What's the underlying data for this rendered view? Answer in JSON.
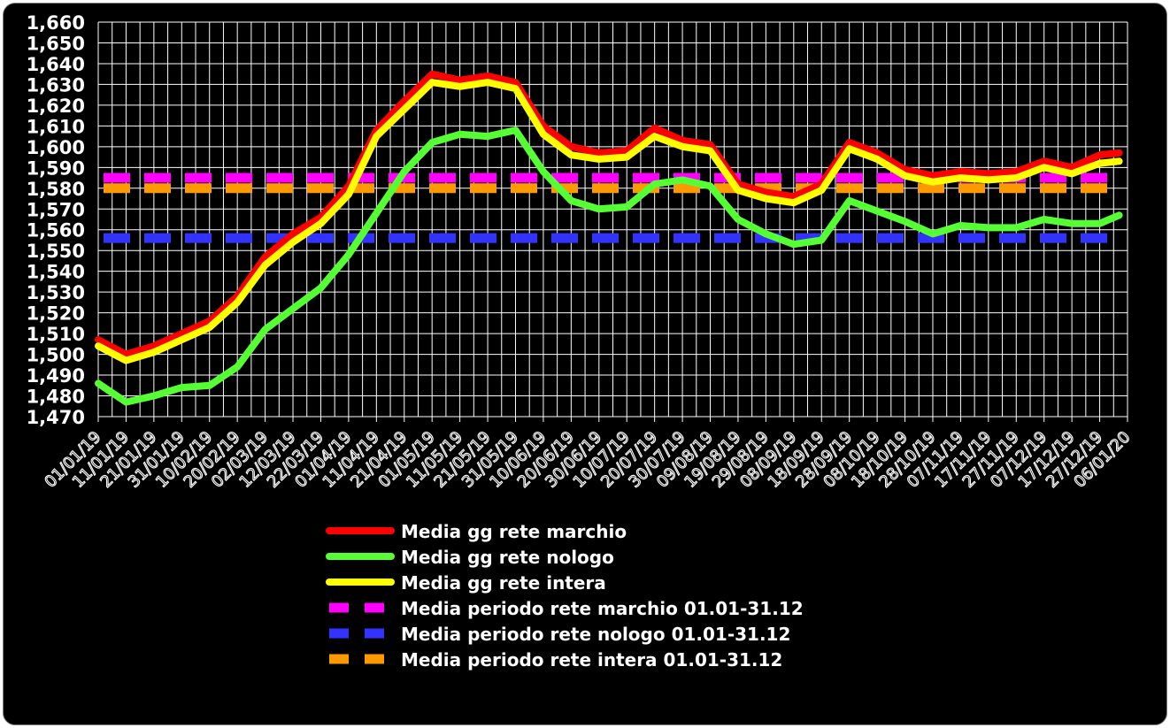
{
  "chart_data": {
    "type": "line",
    "title": "",
    "xlabel": "",
    "ylabel": "",
    "ylim": [
      1470,
      1660
    ],
    "y_ticks": [
      "1,470",
      "1,480",
      "1,490",
      "1,500",
      "1,510",
      "1,520",
      "1,530",
      "1,540",
      "1,550",
      "1,560",
      "1,570",
      "1,580",
      "1,590",
      "1,600",
      "1,610",
      "1,620",
      "1,630",
      "1,640",
      "1,650",
      "1,660"
    ],
    "x_start": "2019-01-01",
    "x_end": "2020-01-06",
    "x_tick_labels": [
      "01/01/19",
      "11/01/19",
      "21/01/19",
      "31/01/19",
      "10/02/19",
      "20/02/19",
      "02/03/19",
      "12/03/19",
      "22/03/19",
      "01/04/19",
      "11/04/19",
      "21/04/19",
      "01/05/19",
      "11/05/19",
      "21/05/19",
      "31/05/19",
      "10/06/19",
      "20/06/19",
      "30/06/19",
      "10/07/19",
      "20/07/19",
      "30/07/19",
      "09/08/19",
      "19/08/19",
      "29/08/19",
      "08/09/19",
      "18/09/19",
      "28/09/19",
      "08/10/19",
      "18/10/19",
      "28/10/19",
      "07/11/19",
      "17/11/19",
      "27/11/19",
      "07/12/19",
      "17/12/19",
      "27/12/19",
      "06/01/20"
    ],
    "grid": true,
    "legend_position": "bottom",
    "series": [
      {
        "name": "Media gg rete marchio",
        "color": "#ff0000",
        "style": "solid",
        "points": [
          [
            "01/01/19",
            1507
          ],
          [
            "11/01/19",
            1500
          ],
          [
            "21/01/19",
            1504
          ],
          [
            "31/01/19",
            1510
          ],
          [
            "10/02/19",
            1516
          ],
          [
            "20/02/19",
            1528
          ],
          [
            "02/03/19",
            1547
          ],
          [
            "12/03/19",
            1558
          ],
          [
            "22/03/19",
            1566
          ],
          [
            "01/04/19",
            1581
          ],
          [
            "11/04/19",
            1608
          ],
          [
            "21/04/19",
            1622
          ],
          [
            "01/05/19",
            1635
          ],
          [
            "11/05/19",
            1632
          ],
          [
            "21/05/19",
            1634
          ],
          [
            "31/05/19",
            1631
          ],
          [
            "10/06/19",
            1610
          ],
          [
            "20/06/19",
            1600
          ],
          [
            "30/06/19",
            1597
          ],
          [
            "10/07/19",
            1598
          ],
          [
            "20/07/19",
            1609
          ],
          [
            "30/07/19",
            1603
          ],
          [
            "09/08/19",
            1601
          ],
          [
            "19/08/19",
            1582
          ],
          [
            "29/08/19",
            1578
          ],
          [
            "08/09/19",
            1576
          ],
          [
            "18/09/19",
            1582
          ],
          [
            "28/09/19",
            1602
          ],
          [
            "08/10/19",
            1597
          ],
          [
            "18/10/19",
            1589
          ],
          [
            "28/10/19",
            1586
          ],
          [
            "07/11/19",
            1588
          ],
          [
            "17/11/19",
            1587
          ],
          [
            "27/11/19",
            1588
          ],
          [
            "07/12/19",
            1593
          ],
          [
            "17/12/19",
            1590
          ],
          [
            "27/12/19",
            1596
          ],
          [
            "03/01/20",
            1597
          ]
        ]
      },
      {
        "name": "Media gg rete nologo",
        "color": "#55ff33",
        "style": "solid",
        "points": [
          [
            "01/01/19",
            1486
          ],
          [
            "11/01/19",
            1477
          ],
          [
            "21/01/19",
            1480
          ],
          [
            "31/01/19",
            1484
          ],
          [
            "10/02/19",
            1485
          ],
          [
            "20/02/19",
            1494
          ],
          [
            "02/03/19",
            1512
          ],
          [
            "12/03/19",
            1522
          ],
          [
            "22/03/19",
            1532
          ],
          [
            "01/04/19",
            1548
          ],
          [
            "11/04/19",
            1568
          ],
          [
            "21/04/19",
            1588
          ],
          [
            "01/05/19",
            1602
          ],
          [
            "11/05/19",
            1606
          ],
          [
            "21/05/19",
            1605
          ],
          [
            "31/05/19",
            1608
          ],
          [
            "10/06/19",
            1588
          ],
          [
            "20/06/19",
            1574
          ],
          [
            "30/06/19",
            1570
          ],
          [
            "10/07/19",
            1571
          ],
          [
            "20/07/19",
            1582
          ],
          [
            "30/07/19",
            1584
          ],
          [
            "09/08/19",
            1581
          ],
          [
            "19/08/19",
            1565
          ],
          [
            "29/08/19",
            1558
          ],
          [
            "08/09/19",
            1553
          ],
          [
            "18/09/19",
            1555
          ],
          [
            "28/09/19",
            1574
          ],
          [
            "08/10/19",
            1569
          ],
          [
            "18/10/19",
            1564
          ],
          [
            "28/10/19",
            1558
          ],
          [
            "07/11/19",
            1562
          ],
          [
            "17/11/19",
            1561
          ],
          [
            "27/11/19",
            1561
          ],
          [
            "07/12/19",
            1565
          ],
          [
            "17/12/19",
            1563
          ],
          [
            "27/12/19",
            1563
          ],
          [
            "03/01/20",
            1567
          ]
        ]
      },
      {
        "name": "Media gg rete intera",
        "color": "#ffff00",
        "style": "solid",
        "points": [
          [
            "01/01/19",
            1504
          ],
          [
            "11/01/19",
            1497
          ],
          [
            "21/01/19",
            1501
          ],
          [
            "31/01/19",
            1507
          ],
          [
            "10/02/19",
            1513
          ],
          [
            "20/02/19",
            1525
          ],
          [
            "02/03/19",
            1543
          ],
          [
            "12/03/19",
            1554
          ],
          [
            "22/03/19",
            1563
          ],
          [
            "01/04/19",
            1577
          ],
          [
            "11/04/19",
            1605
          ],
          [
            "21/04/19",
            1618
          ],
          [
            "01/05/19",
            1631
          ],
          [
            "11/05/19",
            1629
          ],
          [
            "21/05/19",
            1631
          ],
          [
            "31/05/19",
            1628
          ],
          [
            "10/06/19",
            1606
          ],
          [
            "20/06/19",
            1596
          ],
          [
            "30/06/19",
            1594
          ],
          [
            "10/07/19",
            1595
          ],
          [
            "20/07/19",
            1605
          ],
          [
            "30/07/19",
            1600
          ],
          [
            "09/08/19",
            1598
          ],
          [
            "19/08/19",
            1579
          ],
          [
            "29/08/19",
            1575
          ],
          [
            "08/09/19",
            1573
          ],
          [
            "18/09/19",
            1579
          ],
          [
            "28/09/19",
            1599
          ],
          [
            "08/10/19",
            1594
          ],
          [
            "18/10/19",
            1586
          ],
          [
            "28/10/19",
            1583
          ],
          [
            "07/11/19",
            1585
          ],
          [
            "17/11/19",
            1584
          ],
          [
            "27/11/19",
            1585
          ],
          [
            "07/12/19",
            1590
          ],
          [
            "17/12/19",
            1587
          ],
          [
            "27/12/19",
            1592
          ],
          [
            "03/01/20",
            1593
          ]
        ]
      },
      {
        "name": "Media periodo rete marchio 01.01-31.12",
        "color": "#ff00ff",
        "style": "dashed",
        "value": 1585
      },
      {
        "name": "Media periodo rete nologo 01.01-31.12",
        "color": "#3333ff",
        "style": "dashed",
        "value": 1556
      },
      {
        "name": "Media periodo rete intera 01.01-31.12",
        "color": "#ff9900",
        "style": "dashed",
        "value": 1580
      }
    ]
  }
}
